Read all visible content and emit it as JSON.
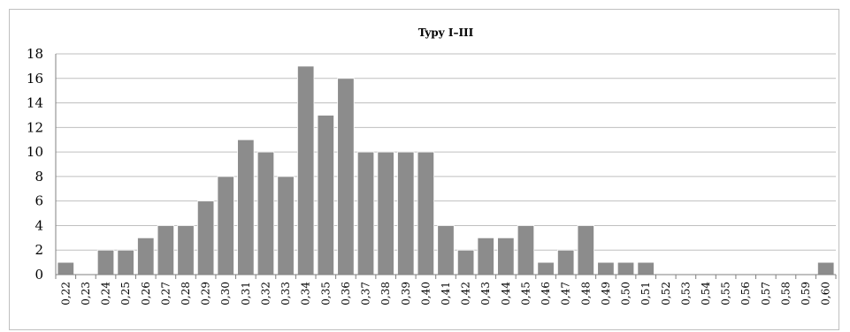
{
  "chart_data": {
    "type": "bar",
    "title": "Typy I–III",
    "xlabel": "",
    "ylabel": "",
    "ylim": [
      0,
      18
    ],
    "yticks": [
      "0",
      "2",
      "4",
      "6",
      "8",
      "10",
      "12",
      "14",
      "16",
      "18"
    ],
    "grid": true,
    "legend": "none",
    "bar_color": "#8c8c8c",
    "categories": [
      "0,22",
      "0,23",
      "0,24",
      "0,25",
      "0,26",
      "0,27",
      "0,28",
      "0,29",
      "0,30",
      "0,31",
      "0,32",
      "0,33",
      "0,34",
      "0,35",
      "0,36",
      "0,37",
      "0,38",
      "0,39",
      "0,40",
      "0,41",
      "0,42",
      "0,43",
      "0,44",
      "0,45",
      "0,46",
      "0,47",
      "0,48",
      "0,49",
      "0,50",
      "0,51",
      "0,52",
      "0,53",
      "0,54",
      "0,55",
      "0,56",
      "0,57",
      "0,58",
      "0,59",
      "0,60"
    ],
    "values": [
      1,
      0,
      2,
      2,
      3,
      4,
      4,
      6,
      8,
      11,
      10,
      8,
      17,
      13,
      16,
      10,
      10,
      10,
      10,
      4,
      2,
      3,
      3,
      4,
      1,
      2,
      4,
      1,
      1,
      1,
      0,
      0,
      0,
      0,
      0,
      0,
      0,
      0,
      1
    ]
  }
}
